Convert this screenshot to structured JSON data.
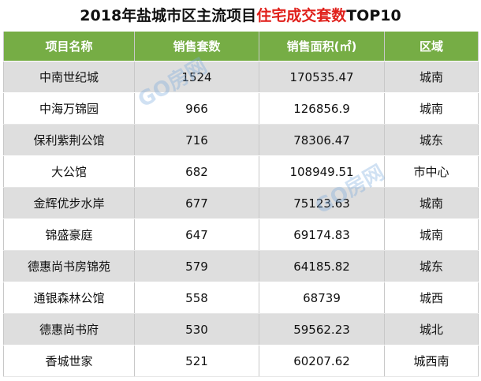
{
  "title": {
    "parts": [
      "2018年盐城市区主流项目",
      "住宅成交套数",
      "TOP10"
    ]
  },
  "watermark": "GO房网",
  "table": {
    "header": [
      "项目名称",
      "销售套数",
      "销售面积(㎡)",
      "区域"
    ],
    "rows": [
      [
        "中南世纪城",
        "1524",
        "170535.47",
        "城南"
      ],
      [
        "中海万锦园",
        "966",
        "126856.9",
        "城南"
      ],
      [
        "保利紫荆公馆",
        "716",
        "78306.47",
        "城东"
      ],
      [
        "大公馆",
        "682",
        "108949.51",
        "市中心"
      ],
      [
        "金辉优步水岸",
        "677",
        "75123.63",
        "城南"
      ],
      [
        "锦盛豪庭",
        "647",
        "69174.83",
        "城南"
      ],
      [
        "德惠尚书房锦苑",
        "579",
        "64185.82",
        "城东"
      ],
      [
        "通银森林公馆",
        "558",
        "68739",
        "城西"
      ],
      [
        "德惠尚书府",
        "530",
        "59562.23",
        "城北"
      ],
      [
        "香城世家",
        "521",
        "60207.62",
        "城西南"
      ]
    ]
  }
}
